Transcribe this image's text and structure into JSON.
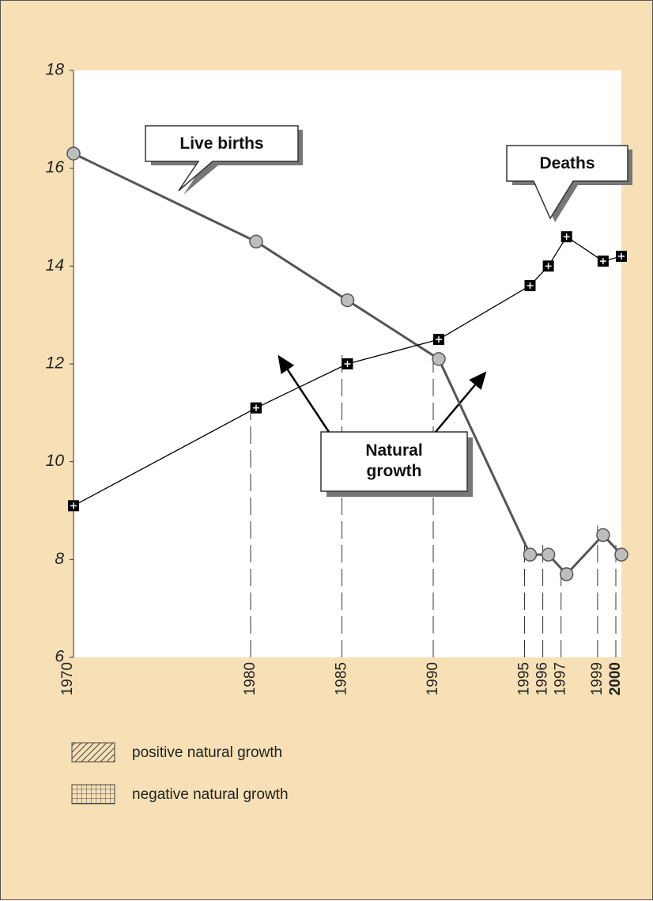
{
  "chart_data": {
    "type": "line",
    "x": [
      1970,
      1980,
      1985,
      1990,
      1995,
      1996,
      1997,
      1999,
      2000
    ],
    "series": [
      {
        "name": "Live births",
        "color": "#555555",
        "values": [
          16.3,
          14.5,
          13.3,
          12.1,
          8.1,
          8.1,
          7.7,
          8.5,
          8.1
        ]
      },
      {
        "name": "Deaths",
        "color": "#000000",
        "values": [
          9.1,
          11.1,
          12.0,
          12.5,
          13.6,
          14.0,
          14.6,
          14.1,
          14.2
        ]
      }
    ],
    "annotations": [
      "Natural growth"
    ],
    "legend_items": [
      "positive natural growth",
      "negative natural growth"
    ],
    "xlim": [
      1970,
      2000
    ],
    "xticks": [
      1970,
      1980,
      1985,
      1990,
      1995,
      1996,
      1997,
      1999,
      2000
    ],
    "ylim": [
      6,
      18
    ],
    "yticks": [
      6,
      8,
      10,
      12,
      14,
      16,
      18
    ]
  }
}
